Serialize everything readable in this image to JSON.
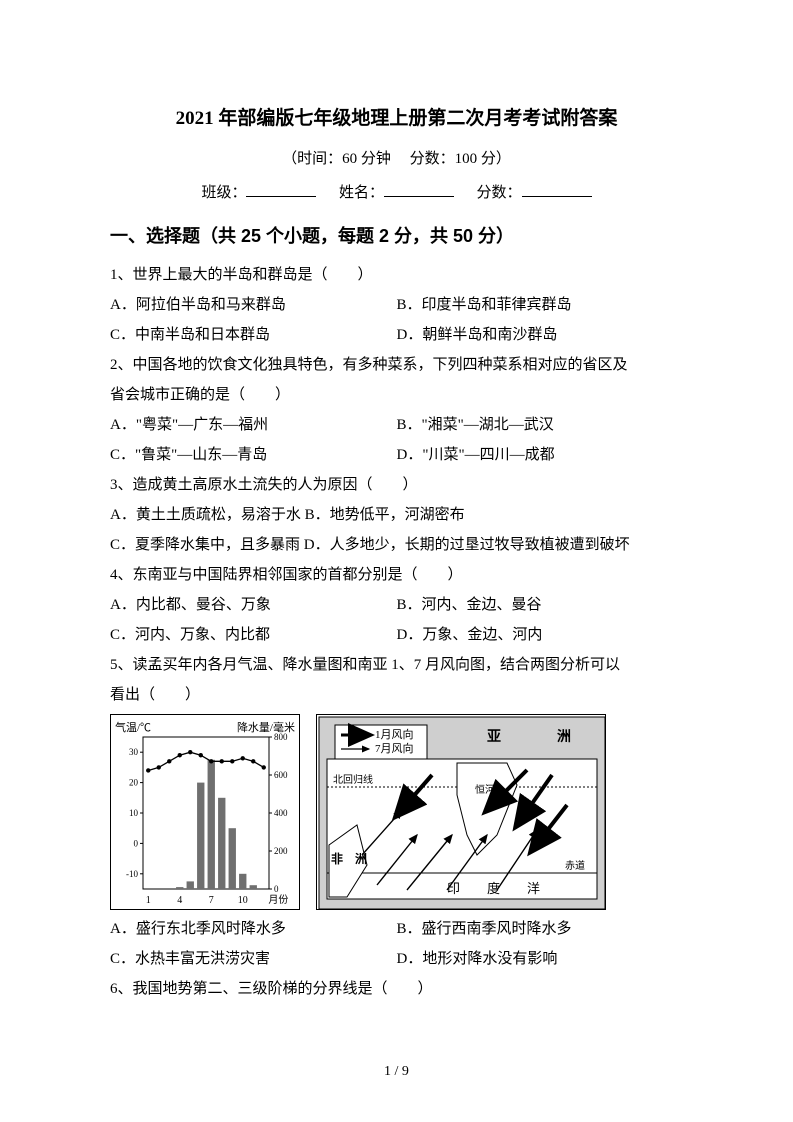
{
  "title": "2021 年部编版七年级地理上册第二次月考考试附答案",
  "subtitle_time": "（时间：60 分钟",
  "subtitle_score": "分数：100 分）",
  "info": {
    "class": "班级：",
    "name": "姓名：",
    "score": "分数："
  },
  "section1": "一、选择题（共 25 个小题，每题 2 分，共 50 分）",
  "q1": {
    "stem": "1、世界上最大的半岛和群岛是（　　）",
    "A": "A．阿拉伯半岛和马来群岛",
    "B": "B．印度半岛和菲律宾群岛",
    "C": "C．中南半岛和日本群岛",
    "D": "D．朝鲜半岛和南沙群岛"
  },
  "q2": {
    "stem1": "2、中国各地的饮食文化独具特色，有多种菜系，下列四种菜系相对应的省区及",
    "stem2": "省会城市正确的是（　　）",
    "A": "A．\"粤菜\"—广东—福州",
    "B": "B．\"湘菜\"—湖北—武汉",
    "C": "C．\"鲁菜\"—山东—青岛",
    "D": "D．\"川菜\"—四川—成都"
  },
  "q3": {
    "stem": "3、造成黄土高原水土流失的人为原因（　　）",
    "line1": "A．黄土土质疏松，易溶于水  B．地势低平，河湖密布",
    "line2": "C．夏季降水集中，且多暴雨  D．人多地少，长期的过垦过牧导致植被遭到破坏"
  },
  "q4": {
    "stem": "4、东南亚与中国陆界相邻国家的首都分别是（　　）",
    "A": "A．内比都、曼谷、万象",
    "B": "B．河内、金边、曼谷",
    "C": "C．河内、万象、内比都",
    "D": "D．万象、金边、河内"
  },
  "q5": {
    "stem1": "5、读孟买年内各月气温、降水量图和南亚 1、7 月风向图，结合两图分析可以",
    "stem2": "看出（　　）",
    "A": "A．盛行东北季风时降水多",
    "B": "B．盛行西南季风时降水多",
    "C": "C．水热丰富无洪涝灾害",
    "D": "D．地形对降水没有影响"
  },
  "q6": {
    "stem": "6、我国地势第二、三级阶梯的分界线是（　　）"
  },
  "chart": {
    "temp_label": "气温/℃",
    "precip_label": "降水量/毫米",
    "x_label": "月份",
    "x_ticks": [
      "1",
      "4",
      "7",
      "10"
    ],
    "temp_y": [
      30,
      20,
      10,
      0,
      -10
    ],
    "precip_y": [
      800,
      600,
      400,
      200,
      0
    ],
    "temp_values": [
      24,
      25,
      27,
      29,
      30,
      29,
      27,
      27,
      27,
      28,
      27,
      25
    ],
    "precip_values": [
      0,
      0,
      0,
      10,
      40,
      560,
      680,
      480,
      320,
      80,
      20,
      0
    ],
    "temp_range": [
      -15,
      35
    ],
    "precip_range": [
      0,
      800
    ],
    "bar_color": "#6f6f6f",
    "line_color": "#000000",
    "bg": "#ffffff"
  },
  "map": {
    "legend_jan": "1月风向",
    "legend_jul": "7月风向",
    "label_asia": "亚",
    "label_continent": "洲",
    "label_africa": "非　洲",
    "label_tropic": "北回归线",
    "label_equator": "赤道",
    "label_ocean1": "印",
    "label_ocean2": "度",
    "label_ocean3": "洋",
    "label_river": "恒河",
    "border_color": "#000000",
    "land_color": "#ffffff",
    "gray": "#cfcfcf"
  },
  "page_num": "1 / 9"
}
